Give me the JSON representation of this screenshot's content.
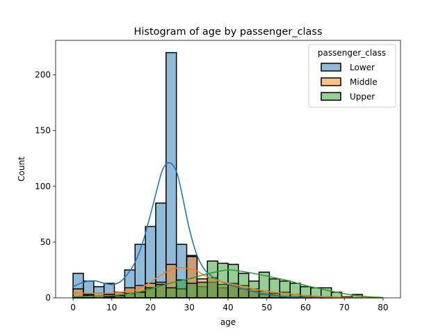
{
  "chart_data": {
    "type": "bar",
    "title": "Histogram of age by passenger_class",
    "xlabel": "age",
    "ylabel": "Count",
    "xlim": [
      -4.5,
      84.5
    ],
    "ylim": [
      0,
      231
    ],
    "x_ticks": [
      0,
      10,
      20,
      30,
      40,
      50,
      60,
      70,
      80
    ],
    "y_ticks": [
      0,
      50,
      100,
      150,
      200
    ],
    "bin_edges": [
      0,
      2.667,
      5.333,
      8,
      10.667,
      13.333,
      16,
      18.667,
      21.333,
      24,
      26.667,
      29.333,
      32,
      34.667,
      37.333,
      40,
      42.667,
      45.333,
      48,
      50.667,
      53.333,
      56,
      58.667,
      61.333,
      64,
      66.667,
      69.333,
      72,
      74.667,
      77.333,
      80
    ],
    "legend": {
      "title": "passenger_class",
      "position": "top-right"
    },
    "series": [
      {
        "name": "Lower",
        "color": "#1f77b4",
        "values": [
          22,
          15,
          10,
          13,
          5,
          25,
          48,
          64,
          85,
          220,
          48,
          38,
          10,
          14,
          9,
          12,
          8,
          6,
          3,
          2,
          1,
          1,
          1,
          0,
          0,
          0,
          0,
          0,
          0,
          0
        ],
        "kde_x": [
          0,
          2,
          4,
          6,
          8,
          10,
          12,
          14,
          16,
          18,
          20,
          22,
          23,
          24,
          25,
          26,
          27,
          28,
          30,
          32,
          34,
          36,
          38,
          40,
          42,
          44,
          46,
          48,
          50,
          52,
          54,
          56,
          60,
          65,
          70,
          75,
          80
        ],
        "kde_y": [
          10,
          13,
          15,
          15,
          13,
          12,
          14,
          21,
          32,
          50,
          75,
          102,
          114,
          120,
          121,
          118,
          110,
          95,
          62,
          38,
          25,
          19,
          15,
          12,
          10,
          8,
          6,
          4.5,
          3.5,
          2.5,
          1.5,
          1,
          0.5,
          0.2,
          0.1,
          0,
          0
        ]
      },
      {
        "name": "Middle",
        "color": "#ff7f0e",
        "values": [
          8,
          3,
          4,
          3,
          5,
          9,
          11,
          13,
          14,
          30,
          8,
          37,
          17,
          18,
          12,
          13,
          11,
          8,
          6,
          4,
          5,
          3,
          2,
          1,
          1,
          0,
          0,
          0,
          0,
          0
        ],
        "kde_x": [
          0,
          4,
          8,
          12,
          16,
          18,
          20,
          22,
          24,
          26,
          28,
          30,
          32,
          34,
          36,
          38,
          40,
          44,
          48,
          52,
          56,
          60,
          64,
          68,
          72,
          76,
          80
        ],
        "kde_y": [
          4,
          4,
          4,
          5,
          7,
          10,
          14,
          19,
          23,
          26,
          27,
          26,
          24,
          20,
          17,
          15,
          13,
          10,
          7,
          5,
          3.5,
          2,
          1.2,
          0.6,
          0.3,
          0.1,
          0
        ]
      },
      {
        "name": "Upper",
        "color": "#2ca02c",
        "values": [
          1,
          2,
          0,
          1,
          2,
          4,
          5,
          9,
          12,
          9,
          16,
          13,
          14,
          33,
          31,
          30,
          22,
          15,
          23,
          17,
          15,
          13,
          10,
          9,
          9,
          5,
          1,
          3,
          0,
          0
        ],
        "kde_x": [
          0,
          5,
          10,
          14,
          18,
          22,
          26,
          30,
          34,
          38,
          40,
          42,
          44,
          48,
          52,
          56,
          60,
          64,
          68,
          72,
          76,
          80
        ],
        "kde_y": [
          1,
          1.5,
          2,
          3.5,
          6,
          10,
          14,
          17,
          21,
          24,
          25,
          24.5,
          23.5,
          21,
          18,
          15,
          11,
          8,
          5,
          2.5,
          1,
          0.3
        ]
      }
    ]
  }
}
